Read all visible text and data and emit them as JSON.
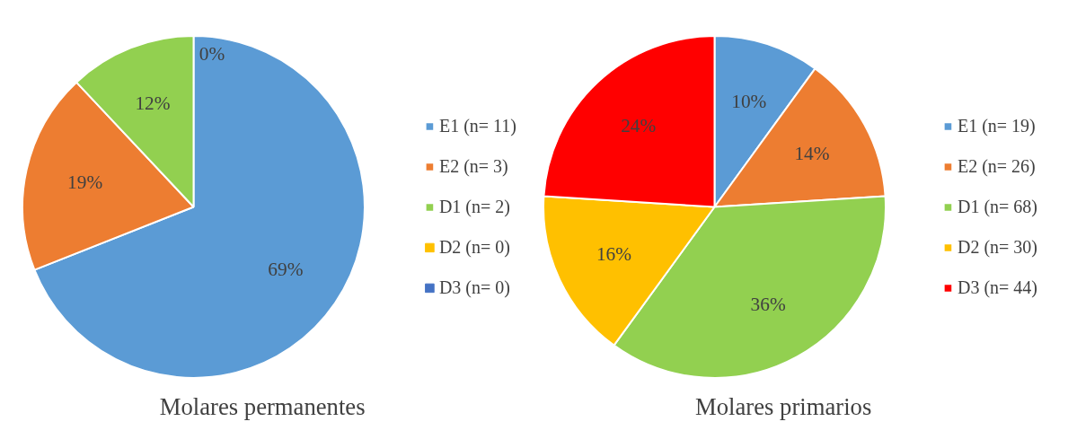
{
  "chart_data": [
    {
      "type": "pie",
      "title": "Molares  permanentes",
      "categories": [
        "E1 (n= 11)",
        "E2 (n= 3)",
        "D1 (n= 2)",
        "D2 (n= 0)",
        "D3 (n= 0)"
      ],
      "values": [
        69,
        19,
        12,
        0,
        0
      ],
      "colors": [
        "#5b9bd5",
        "#ed7d31",
        "#92d050",
        "#ffc000",
        "#4472c4"
      ],
      "value_labels": [
        "69%",
        "19%",
        "12%",
        "0%",
        null
      ],
      "legend": "right"
    },
    {
      "type": "pie",
      "title": "Molares  primarios",
      "categories": [
        "E1 (n= 19)",
        "E2 (n= 26)",
        "D1 (n= 68)",
        "D2 (n= 30)",
        "D3 (n= 44)"
      ],
      "values": [
        10,
        14,
        36,
        16,
        24
      ],
      "colors": [
        "#5b9bd5",
        "#ed7d31",
        "#92d050",
        "#ffc000",
        "#ff0000"
      ],
      "value_labels": [
        "10%",
        "14%",
        "36%",
        "16%",
        "24%"
      ],
      "legend": "right"
    }
  ]
}
